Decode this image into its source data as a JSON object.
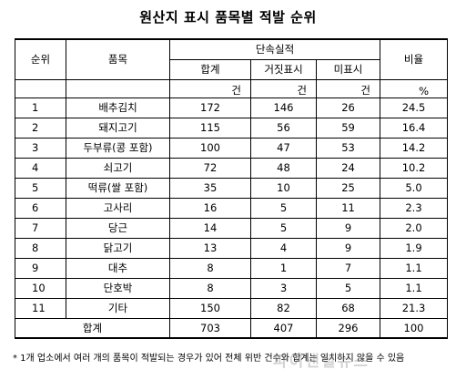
{
  "title": "원산지 표시 품목별 적발 순위",
  "headers": {
    "rank": "순위",
    "item": "품목",
    "group": "단속실적",
    "total": "합계",
    "false_label": "거짓표시",
    "no_label": "미표시",
    "ratio": "비율"
  },
  "units": {
    "total": "건",
    "false_label": "건",
    "no_label": "건",
    "ratio": "%"
  },
  "rows": [
    {
      "rank": "1",
      "item": "배추김치",
      "total": "172",
      "false_label": "146",
      "no_label": "26",
      "ratio": "24.5"
    },
    {
      "rank": "2",
      "item": "돼지고기",
      "total": "115",
      "false_label": "56",
      "no_label": "59",
      "ratio": "16.4"
    },
    {
      "rank": "3",
      "item": "두부류(콩 포함)",
      "total": "100",
      "false_label": "47",
      "no_label": "53",
      "ratio": "14.2"
    },
    {
      "rank": "4",
      "item": "쇠고기",
      "total": "72",
      "false_label": "48",
      "no_label": "24",
      "ratio": "10.2"
    },
    {
      "rank": "5",
      "item": "떡류(쌀 포함)",
      "total": "35",
      "false_label": "10",
      "no_label": "25",
      "ratio": "5.0"
    },
    {
      "rank": "6",
      "item": "고사리",
      "total": "16",
      "false_label": "5",
      "no_label": "11",
      "ratio": "2.3"
    },
    {
      "rank": "7",
      "item": "당근",
      "total": "14",
      "false_label": "5",
      "no_label": "9",
      "ratio": "2.0"
    },
    {
      "rank": "8",
      "item": "닭고기",
      "total": "13",
      "false_label": "4",
      "no_label": "9",
      "ratio": "1.9"
    },
    {
      "rank": "9",
      "item": "대추",
      "total": "8",
      "false_label": "1",
      "no_label": "7",
      "ratio": "1.1"
    },
    {
      "rank": "10",
      "item": "단호박",
      "total": "8",
      "false_label": "3",
      "no_label": "5",
      "ratio": "1.1"
    },
    {
      "rank": "11",
      "item": "기타",
      "total": "150",
      "false_label": "82",
      "no_label": "68",
      "ratio": "21.3"
    }
  ],
  "total_row": {
    "label": "합계",
    "total": "703",
    "false_label": "407",
    "no_label": "296",
    "ratio": "100"
  },
  "footnote": "* 1개 업소에서 여러 개의 품목이 적발되는 경우가 있어 전체 위반 건수와 합계는 일치하지 않을 수 있음",
  "watermark": "파이낸셜뉴스"
}
